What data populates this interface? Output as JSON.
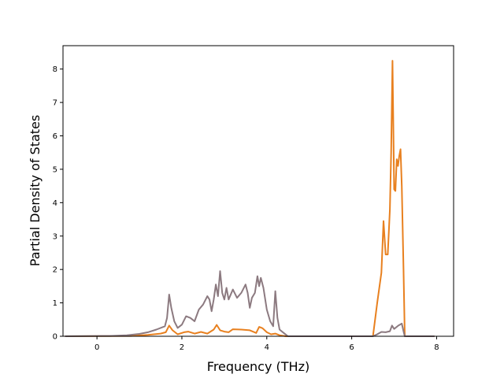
{
  "chart_data": {
    "type": "line",
    "title": "",
    "xlabel": "Frequency (THz)",
    "ylabel": "Partial Density of States",
    "xlim": [
      -0.8,
      8.4
    ],
    "ylim": [
      0,
      8.7
    ],
    "x_ticks": [
      0,
      2,
      4,
      6,
      8
    ],
    "y_ticks": [
      0,
      1,
      2,
      3,
      4,
      5,
      6,
      7,
      8
    ],
    "x_tick_labels": [
      "0",
      "2",
      "4",
      "6",
      "8"
    ],
    "y_tick_labels": [
      "0",
      "1",
      "2",
      "3",
      "4",
      "5",
      "6",
      "7",
      "8"
    ],
    "grid": false,
    "legend": "none",
    "series": [
      {
        "color": "#e8801f",
        "points": [
          [
            -0.75,
            0
          ],
          [
            0.8,
            0.01
          ],
          [
            1.2,
            0.04
          ],
          [
            1.5,
            0.08
          ],
          [
            1.62,
            0.12
          ],
          [
            1.7,
            0.32
          ],
          [
            1.78,
            0.18
          ],
          [
            1.9,
            0.06
          ],
          [
            2.05,
            0.12
          ],
          [
            2.15,
            0.14
          ],
          [
            2.3,
            0.08
          ],
          [
            2.45,
            0.13
          ],
          [
            2.6,
            0.08
          ],
          [
            2.75,
            0.2
          ],
          [
            2.82,
            0.34
          ],
          [
            2.9,
            0.18
          ],
          [
            3.0,
            0.14
          ],
          [
            3.1,
            0.12
          ],
          [
            3.2,
            0.21
          ],
          [
            3.4,
            0.2
          ],
          [
            3.6,
            0.18
          ],
          [
            3.75,
            0.1
          ],
          [
            3.82,
            0.28
          ],
          [
            3.9,
            0.24
          ],
          [
            4.0,
            0.12
          ],
          [
            4.1,
            0.06
          ],
          [
            4.2,
            0.08
          ],
          [
            4.3,
            0.03
          ],
          [
            4.45,
            0
          ],
          [
            6.5,
            0
          ],
          [
            6.6,
            1.0
          ],
          [
            6.7,
            1.9
          ],
          [
            6.75,
            3.45
          ],
          [
            6.8,
            2.45
          ],
          [
            6.85,
            2.45
          ],
          [
            6.9,
            3.8
          ],
          [
            6.93,
            5.5
          ],
          [
            6.96,
            8.25
          ],
          [
            7.0,
            4.4
          ],
          [
            7.03,
            4.35
          ],
          [
            7.06,
            5.3
          ],
          [
            7.09,
            5.1
          ],
          [
            7.12,
            5.4
          ],
          [
            7.15,
            5.6
          ],
          [
            7.18,
            4.5
          ],
          [
            7.22,
            2.0
          ],
          [
            7.25,
            0
          ],
          [
            7.95,
            0
          ]
        ]
      },
      {
        "color": "#8c7a80",
        "points": [
          [
            -0.75,
            0
          ],
          [
            0.3,
            0.01
          ],
          [
            0.7,
            0.03
          ],
          [
            1.0,
            0.07
          ],
          [
            1.2,
            0.12
          ],
          [
            1.4,
            0.2
          ],
          [
            1.6,
            0.3
          ],
          [
            1.65,
            0.55
          ],
          [
            1.7,
            1.25
          ],
          [
            1.75,
            0.85
          ],
          [
            1.82,
            0.45
          ],
          [
            1.9,
            0.25
          ],
          [
            2.0,
            0.35
          ],
          [
            2.1,
            0.6
          ],
          [
            2.2,
            0.55
          ],
          [
            2.3,
            0.45
          ],
          [
            2.4,
            0.8
          ],
          [
            2.5,
            0.95
          ],
          [
            2.6,
            1.2
          ],
          [
            2.65,
            1.1
          ],
          [
            2.7,
            0.75
          ],
          [
            2.75,
            1.1
          ],
          [
            2.8,
            1.55
          ],
          [
            2.85,
            1.2
          ],
          [
            2.9,
            1.95
          ],
          [
            2.95,
            1.3
          ],
          [
            3.0,
            1.1
          ],
          [
            3.05,
            1.45
          ],
          [
            3.1,
            1.1
          ],
          [
            3.2,
            1.4
          ],
          [
            3.3,
            1.15
          ],
          [
            3.4,
            1.3
          ],
          [
            3.5,
            1.55
          ],
          [
            3.55,
            1.3
          ],
          [
            3.6,
            0.85
          ],
          [
            3.65,
            1.15
          ],
          [
            3.72,
            1.3
          ],
          [
            3.78,
            1.8
          ],
          [
            3.82,
            1.5
          ],
          [
            3.86,
            1.75
          ],
          [
            3.92,
            1.45
          ],
          [
            4.0,
            0.8
          ],
          [
            4.08,
            0.45
          ],
          [
            4.15,
            0.3
          ],
          [
            4.2,
            1.35
          ],
          [
            4.25,
            0.55
          ],
          [
            4.3,
            0.2
          ],
          [
            4.4,
            0.1
          ],
          [
            4.5,
            0
          ],
          [
            6.5,
            0
          ],
          [
            6.6,
            0.06
          ],
          [
            6.7,
            0.13
          ],
          [
            6.8,
            0.12
          ],
          [
            6.9,
            0.15
          ],
          [
            6.95,
            0.32
          ],
          [
            7.0,
            0.22
          ],
          [
            7.1,
            0.32
          ],
          [
            7.18,
            0.38
          ],
          [
            7.22,
            0.15
          ],
          [
            7.25,
            0
          ],
          [
            7.95,
            0
          ]
        ]
      }
    ]
  }
}
